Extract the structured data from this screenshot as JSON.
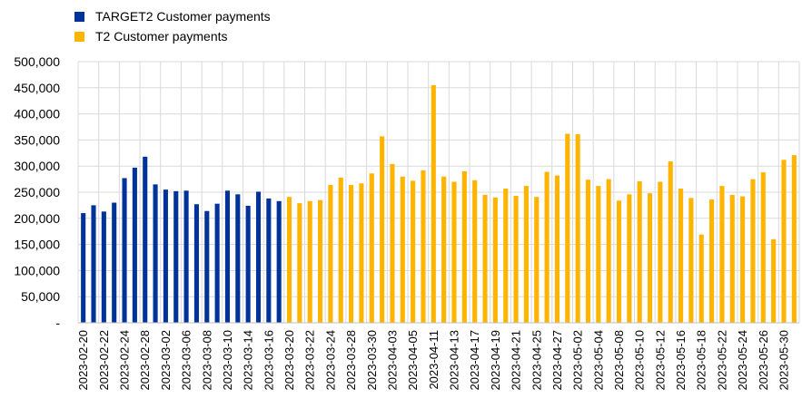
{
  "chart_data": {
    "type": "bar",
    "legend": [
      {
        "label": "TARGET2 Customer payments",
        "color": "#003399"
      },
      {
        "label": "T2 Customer payments",
        "color": "#FFB400"
      }
    ],
    "y_ticks": [
      "-",
      "50,000",
      "100,000",
      "150,000",
      "200,000",
      "250,000",
      "300,000",
      "350,000",
      "400,000",
      "450,000",
      "500,000"
    ],
    "ylim": [
      0,
      500000
    ],
    "grid": true,
    "x_tick_labels": [
      "2023-02-20",
      "2023-02-22",
      "2023-02-24",
      "2023-02-28",
      "2023-03-02",
      "2023-03-06",
      "2023-03-08",
      "2023-03-10",
      "2023-03-14",
      "2023-03-16",
      "2023-03-20",
      "2023-03-22",
      "2023-03-24",
      "2023-03-28",
      "2023-03-30",
      "2023-04-03",
      "2023-04-05",
      "2023-04-11",
      "2023-04-13",
      "2023-04-17",
      "2023-04-19",
      "2023-04-21",
      "2023-04-25",
      "2023-04-27",
      "2023-05-02",
      "2023-05-04",
      "2023-05-08",
      "2023-05-10",
      "2023-05-12",
      "2023-05-16",
      "2023-05-18",
      "2023-05-22",
      "2023-05-24",
      "2023-05-26",
      "2023-05-30"
    ],
    "series": [
      {
        "name": "TARGET2 Customer payments",
        "color": "#003399",
        "values": [
          210000,
          225000,
          213000,
          230000,
          277000,
          297000,
          318000,
          265000,
          255000,
          252000,
          253000,
          227000,
          214000,
          228000,
          253000,
          246000,
          224000,
          251000,
          238000,
          233000
        ]
      },
      {
        "name": "T2 Customer payments",
        "color": "#FFB400",
        "values": [
          241000,
          229000,
          233000,
          235000,
          264000,
          278000,
          264000,
          267000,
          286000,
          357000,
          304000,
          280000,
          272000,
          292000,
          455000,
          280000,
          270000,
          290000,
          273000,
          245000,
          240000,
          257000,
          243000,
          262000,
          241000,
          289000,
          282000,
          362000,
          361000,
          274000,
          262000,
          275000,
          234000,
          246000,
          271000,
          248000,
          270000,
          309000,
          257000,
          239000,
          169000,
          236000,
          262000,
          245000,
          242000,
          275000,
          288000,
          160000,
          312000,
          321000
        ]
      }
    ]
  }
}
